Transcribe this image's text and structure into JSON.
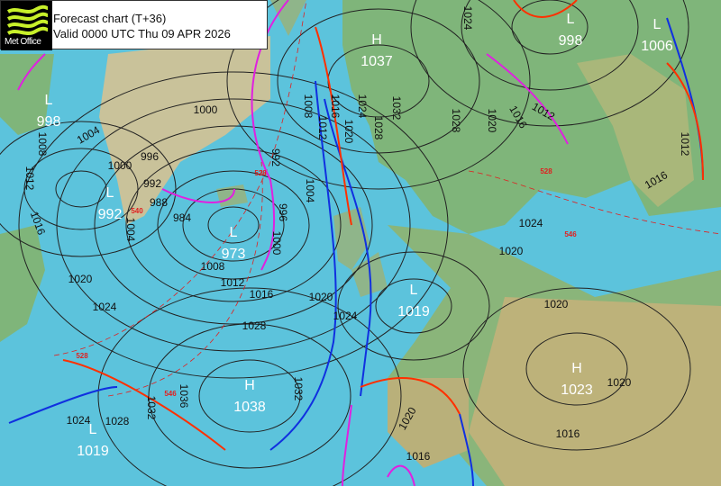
{
  "header": {
    "logo_text": "Met Office",
    "title": "Forecast chart (T+36)",
    "valid": "Valid 0000 UTC Thu 09 APR 2026"
  },
  "colors": {
    "sea": "#5cc3dc",
    "land_low": "#7fb57a",
    "land_high": "#c9b27a",
    "isobar": "#222222",
    "cold_front": "#1030e0",
    "warm_front": "#ff3000",
    "occluded_front": "#e020e0",
    "thickness": "#e02020"
  },
  "pressure_centres": [
    {
      "type": "H",
      "value": "1037"
    },
    {
      "type": "L",
      "value": "998"
    },
    {
      "type": "L",
      "value": "1006"
    },
    {
      "type": "L",
      "value": "998"
    },
    {
      "type": "L",
      "value": "992"
    },
    {
      "type": "L",
      "value": "973"
    },
    {
      "type": "L",
      "value": "1019"
    },
    {
      "type": "H",
      "value": "1023"
    },
    {
      "type": "H",
      "value": "1038"
    },
    {
      "type": "L",
      "value": "1019"
    }
  ],
  "isobar_labels": [
    "1024",
    "1004",
    "1000",
    "1000",
    "996",
    "992",
    "988",
    "984",
    "1008",
    "1012",
    "1016",
    "1004",
    "1008",
    "1012",
    "1016",
    "1020",
    "1024",
    "1028",
    "1036",
    "1032",
    "1028",
    "1024",
    "1032",
    "1020",
    "1024",
    "1004",
    "1000",
    "996",
    "992",
    "1008",
    "1012",
    "1016",
    "1020",
    "1024",
    "1028",
    "1032",
    "1028",
    "1020",
    "1016",
    "1012",
    "1016",
    "1012",
    "1024",
    "1020",
    "1020",
    "1020",
    "1016",
    "1020",
    "1016"
  ],
  "thickness_labels": [
    "528",
    "540",
    "546",
    "528",
    "528",
    "546"
  ]
}
